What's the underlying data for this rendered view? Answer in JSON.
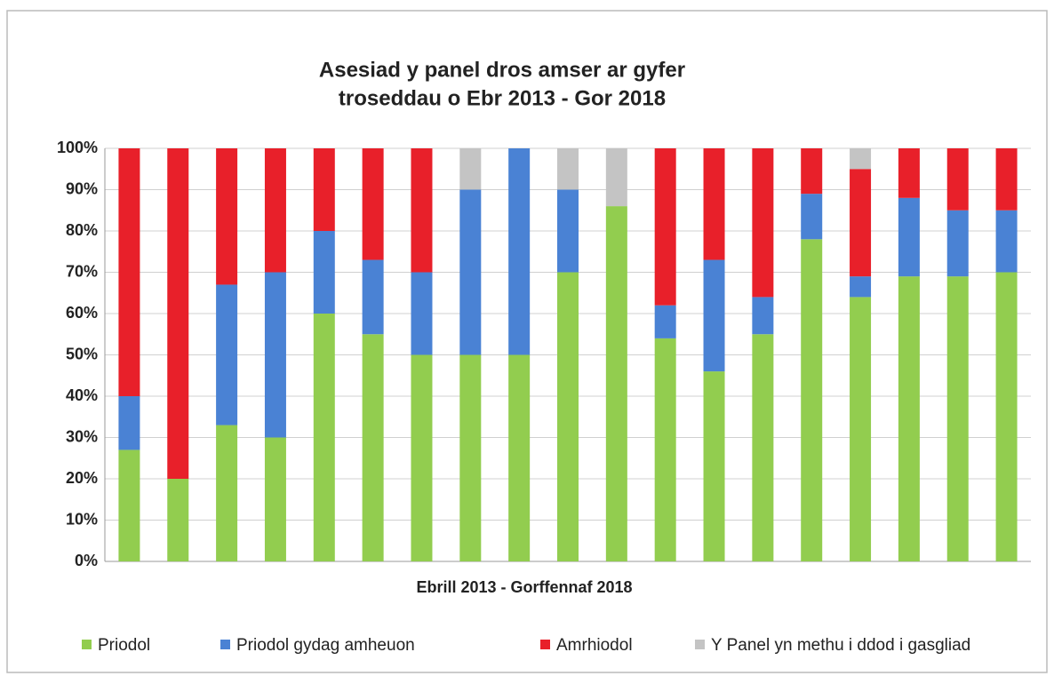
{
  "chart_data": {
    "type": "stacked_bar",
    "title": [
      "Asesiad y panel dros amser ar gyfer",
      "troseddau o Ebr 2013 - Gor 2018"
    ],
    "x_label": "Ebrill 2013 - Gorffennaf 2018",
    "categories": [
      null,
      null,
      null,
      null,
      null,
      null,
      null,
      null,
      null,
      null,
      null,
      null,
      null,
      null,
      null,
      null,
      null,
      null,
      null
    ],
    "series": [
      {
        "name": "Priodol",
        "color": "#92cd4f",
        "values": [
          27,
          20,
          33,
          30,
          60,
          55,
          50,
          50,
          50,
          70,
          86,
          54,
          46,
          55,
          78,
          64,
          69,
          69,
          70
        ]
      },
      {
        "name": "Priodol gydag amheuon",
        "color": "#4a82d4",
        "values": [
          13,
          0,
          34,
          40,
          20,
          18,
          20,
          40,
          50,
          20,
          0,
          8,
          27,
          9,
          11,
          5,
          19,
          16,
          15
        ]
      },
      {
        "name": "Amrhiodol",
        "color": "#e8202a",
        "values": [
          60,
          80,
          33,
          30,
          20,
          27,
          30,
          0,
          0,
          0,
          0,
          38,
          27,
          36,
          11,
          26,
          12,
          15,
          15
        ]
      },
      {
        "name": "Y Panel yn methu i ddod i gasgliad",
        "color": "#c4c4c4",
        "values": [
          0,
          0,
          0,
          0,
          0,
          0,
          0,
          10,
          0,
          10,
          14,
          0,
          0,
          0,
          0,
          5,
          0,
          0,
          0
        ]
      }
    ],
    "ylim": [
      0,
      100
    ],
    "yticks": [
      {
        "value": 0,
        "label": "0%"
      },
      {
        "value": 10,
        "label": "10%"
      },
      {
        "value": 20,
        "label": "20%"
      },
      {
        "value": 30,
        "label": "30%"
      },
      {
        "value": 40,
        "label": "40%"
      },
      {
        "value": 50,
        "label": "50%"
      },
      {
        "value": 60,
        "label": "60%"
      },
      {
        "value": 70,
        "label": "70%"
      },
      {
        "value": 80,
        "label": "80%"
      },
      {
        "value": 90,
        "label": "90%"
      },
      {
        "value": 100,
        "label": "100%"
      }
    ],
    "grid": true,
    "legend": "bottom"
  }
}
